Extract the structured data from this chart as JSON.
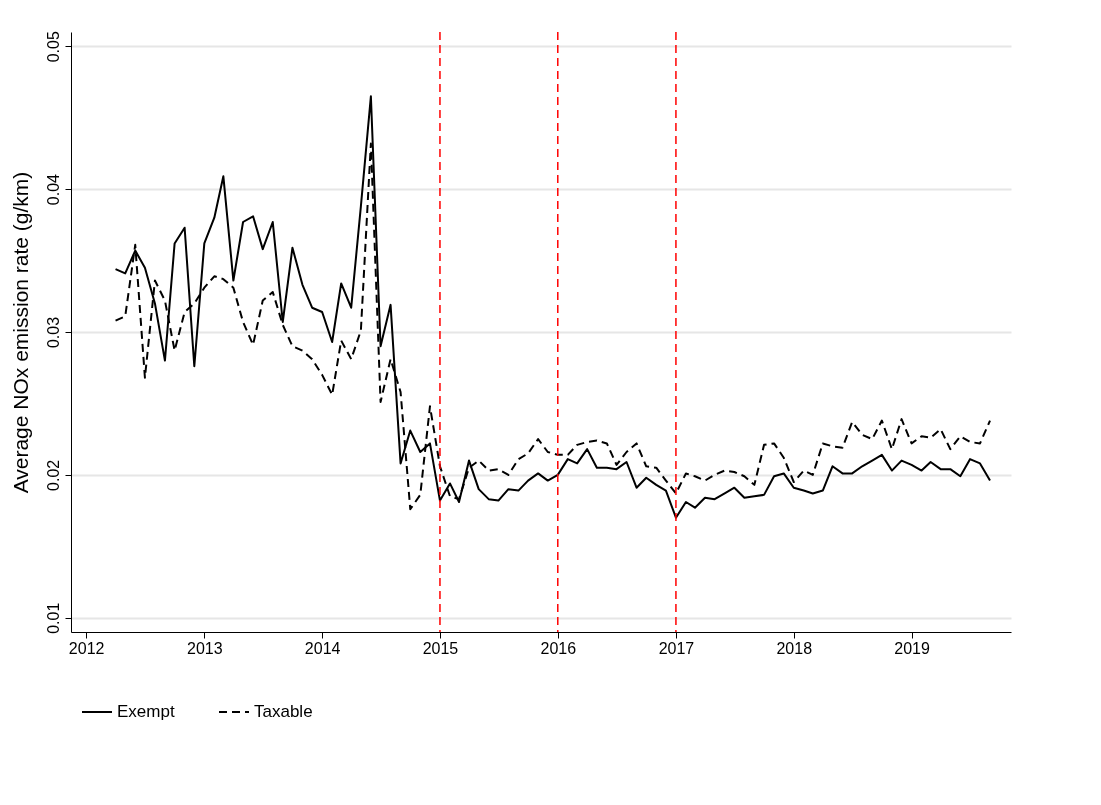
{
  "chart_data": {
    "type": "line",
    "ylabel": "Average NOx emission rate (g/km)",
    "x": [
      "2012-04",
      "2012-05",
      "2012-06",
      "2012-07",
      "2012-08",
      "2012-09",
      "2012-10",
      "2012-11",
      "2012-12",
      "2013-01",
      "2013-02",
      "2013-03",
      "2013-04",
      "2013-05",
      "2013-06",
      "2013-07",
      "2013-08",
      "2013-09",
      "2013-10",
      "2013-11",
      "2013-12",
      "2014-01",
      "2014-02",
      "2014-03",
      "2014-04",
      "2014-05",
      "2014-06",
      "2014-07",
      "2014-08",
      "2014-09",
      "2014-10",
      "2014-11",
      "2014-12",
      "2015-01",
      "2015-02",
      "2015-03",
      "2015-04",
      "2015-05",
      "2015-06",
      "2015-07",
      "2015-08",
      "2015-09",
      "2015-10",
      "2015-11",
      "2015-12",
      "2016-01",
      "2016-02",
      "2016-03",
      "2016-04",
      "2016-05",
      "2016-06",
      "2016-07",
      "2016-08",
      "2016-09",
      "2016-10",
      "2016-11",
      "2016-12",
      "2017-01",
      "2017-02",
      "2017-03",
      "2017-04",
      "2017-05",
      "2017-06",
      "2017-07",
      "2017-08",
      "2017-09",
      "2017-10",
      "2017-11",
      "2017-12",
      "2018-01",
      "2018-02",
      "2018-03",
      "2018-04",
      "2018-05",
      "2018-06",
      "2018-07",
      "2018-08",
      "2018-09",
      "2018-10",
      "2018-11",
      "2018-12",
      "2019-01",
      "2019-02",
      "2019-03",
      "2019-04",
      "2019-05",
      "2019-06",
      "2019-07",
      "2019-08",
      "2019-09"
    ],
    "series": [
      {
        "name": "Exempt",
        "color": "#000000",
        "line_style": "solid",
        "values": [
          0.0344,
          0.0341,
          0.0357,
          0.0345,
          0.032,
          0.028,
          0.0362,
          0.0373,
          0.0276,
          0.0362,
          0.038,
          0.0409,
          0.0336,
          0.0377,
          0.0381,
          0.0358,
          0.0377,
          0.0307,
          0.0359,
          0.0333,
          0.0317,
          0.0314,
          0.0293,
          0.0334,
          0.0317,
          0.0388,
          0.0465,
          0.029,
          0.0319,
          0.0208,
          0.0231,
          0.0216,
          0.0222,
          0.0182,
          0.0194,
          0.0181,
          0.021,
          0.019,
          0.0183,
          0.0182,
          0.019,
          0.0189,
          0.0196,
          0.0201,
          0.0196,
          0.02,
          0.0211,
          0.0208,
          0.0218,
          0.0205,
          0.0205,
          0.0204,
          0.0209,
          0.0191,
          0.0198,
          0.0193,
          0.0189,
          0.017,
          0.0181,
          0.0177,
          0.0184,
          0.0183,
          0.0187,
          0.0191,
          0.0184,
          0.0185,
          0.0186,
          0.0199,
          0.0201,
          0.0191,
          0.0189,
          0.0187,
          0.0189,
          0.0206,
          0.0201,
          0.0201,
          0.0206,
          0.021,
          0.0214,
          0.0203,
          0.021,
          0.0207,
          0.0203,
          0.0209,
          0.0204,
          0.0204,
          0.0199,
          0.0211,
          0.0208,
          0.0196
        ]
      },
      {
        "name": "Taxable",
        "color": "#000000",
        "line_style": "dashed",
        "values": [
          0.0308,
          0.0311,
          0.0361,
          0.0268,
          0.0336,
          0.0322,
          0.0287,
          0.0314,
          0.032,
          0.0331,
          0.0339,
          0.0337,
          0.0331,
          0.0307,
          0.0291,
          0.0322,
          0.0328,
          0.0305,
          0.029,
          0.0287,
          0.0281,
          0.027,
          0.0256,
          0.0294,
          0.0281,
          0.0301,
          0.0432,
          0.0251,
          0.0281,
          0.0258,
          0.0176,
          0.0186,
          0.0248,
          0.0206,
          0.0185,
          0.0183,
          0.0205,
          0.021,
          0.0203,
          0.0204,
          0.02,
          0.0211,
          0.0215,
          0.0225,
          0.0216,
          0.0214,
          0.0214,
          0.0221,
          0.0223,
          0.0224,
          0.0222,
          0.0207,
          0.0216,
          0.0222,
          0.0206,
          0.0205,
          0.0196,
          0.0187,
          0.0201,
          0.0199,
          0.0196,
          0.02,
          0.0203,
          0.0202,
          0.0199,
          0.0193,
          0.0221,
          0.0222,
          0.0212,
          0.0195,
          0.0203,
          0.02,
          0.0222,
          0.022,
          0.0219,
          0.0237,
          0.0228,
          0.0225,
          0.0238,
          0.0218,
          0.0239,
          0.0222,
          0.0227,
          0.0226,
          0.0232,
          0.0218,
          0.0227,
          0.0223,
          0.0222,
          0.0238
        ]
      }
    ],
    "xlim": [
      "2011-11-15",
      "2019-11-05"
    ],
    "xticks": [
      "2012",
      "2013",
      "2014",
      "2015",
      "2016",
      "2017",
      "2018",
      "2019"
    ],
    "ylim": [
      0.009,
      0.051
    ],
    "yticks": [
      0.01,
      0.02,
      0.03,
      0.04,
      0.05
    ],
    "ref_lines": [
      {
        "axis": "x",
        "value": "2015",
        "color": "#ff0000",
        "line_style": "dashed"
      },
      {
        "axis": "x",
        "value": "2016",
        "color": "#ff0000",
        "line_style": "dashed"
      },
      {
        "axis": "x",
        "value": "2017",
        "color": "#ff0000",
        "line_style": "dashed"
      }
    ],
    "grid": "y",
    "legend": "bottom",
    "marker": "none"
  }
}
